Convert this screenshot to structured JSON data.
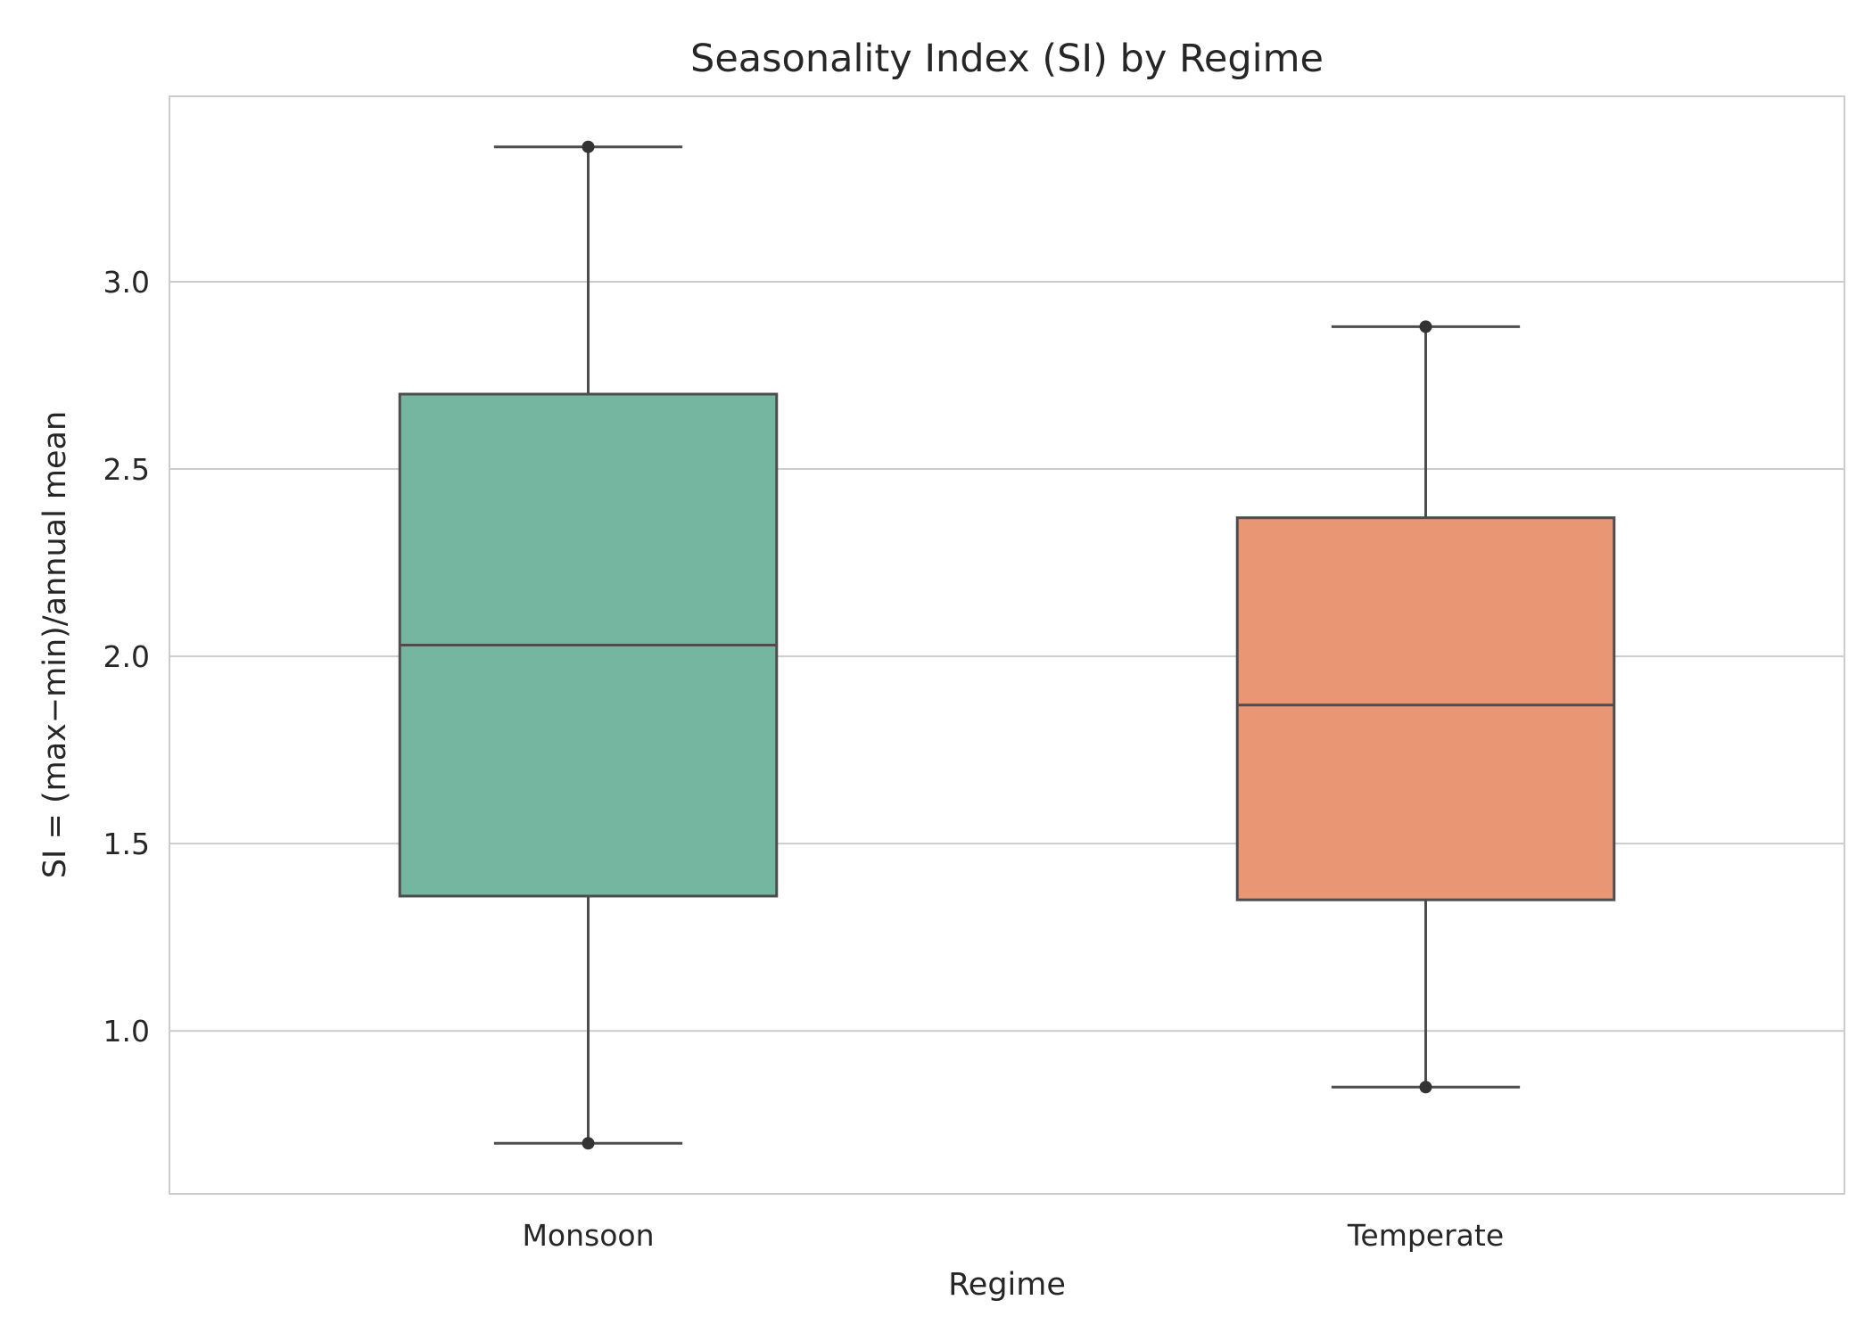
{
  "chart_data": {
    "type": "box",
    "title": "Seasonality Index (SI) by Regime",
    "xlabel": "Regime",
    "ylabel": "SI = (max−min)/annual mean",
    "categories": [
      "Monsoon",
      "Temperate"
    ],
    "boxes": [
      {
        "category": "Monsoon",
        "whisker_low": 0.7,
        "q1": 1.36,
        "median": 2.03,
        "q3": 2.7,
        "whisker_high": 3.36,
        "color": "#75b6a1"
      },
      {
        "category": "Temperate",
        "whisker_low": 0.85,
        "q1": 1.35,
        "median": 1.87,
        "q3": 2.37,
        "whisker_high": 2.88,
        "color": "#e99675"
      }
    ],
    "y_ticks": [
      1.0,
      1.5,
      2.0,
      2.5,
      3.0
    ],
    "y_tick_labels": [
      "1.0",
      "1.5",
      "2.0",
      "2.5",
      "3.0"
    ],
    "ylim": [
      0.565,
      3.495
    ],
    "grid": "horizontal",
    "legend": "none",
    "colors": {
      "line": "#4d4d4d",
      "grid": "#cccccc",
      "frame": "#cccccc",
      "point": "#333333"
    }
  }
}
